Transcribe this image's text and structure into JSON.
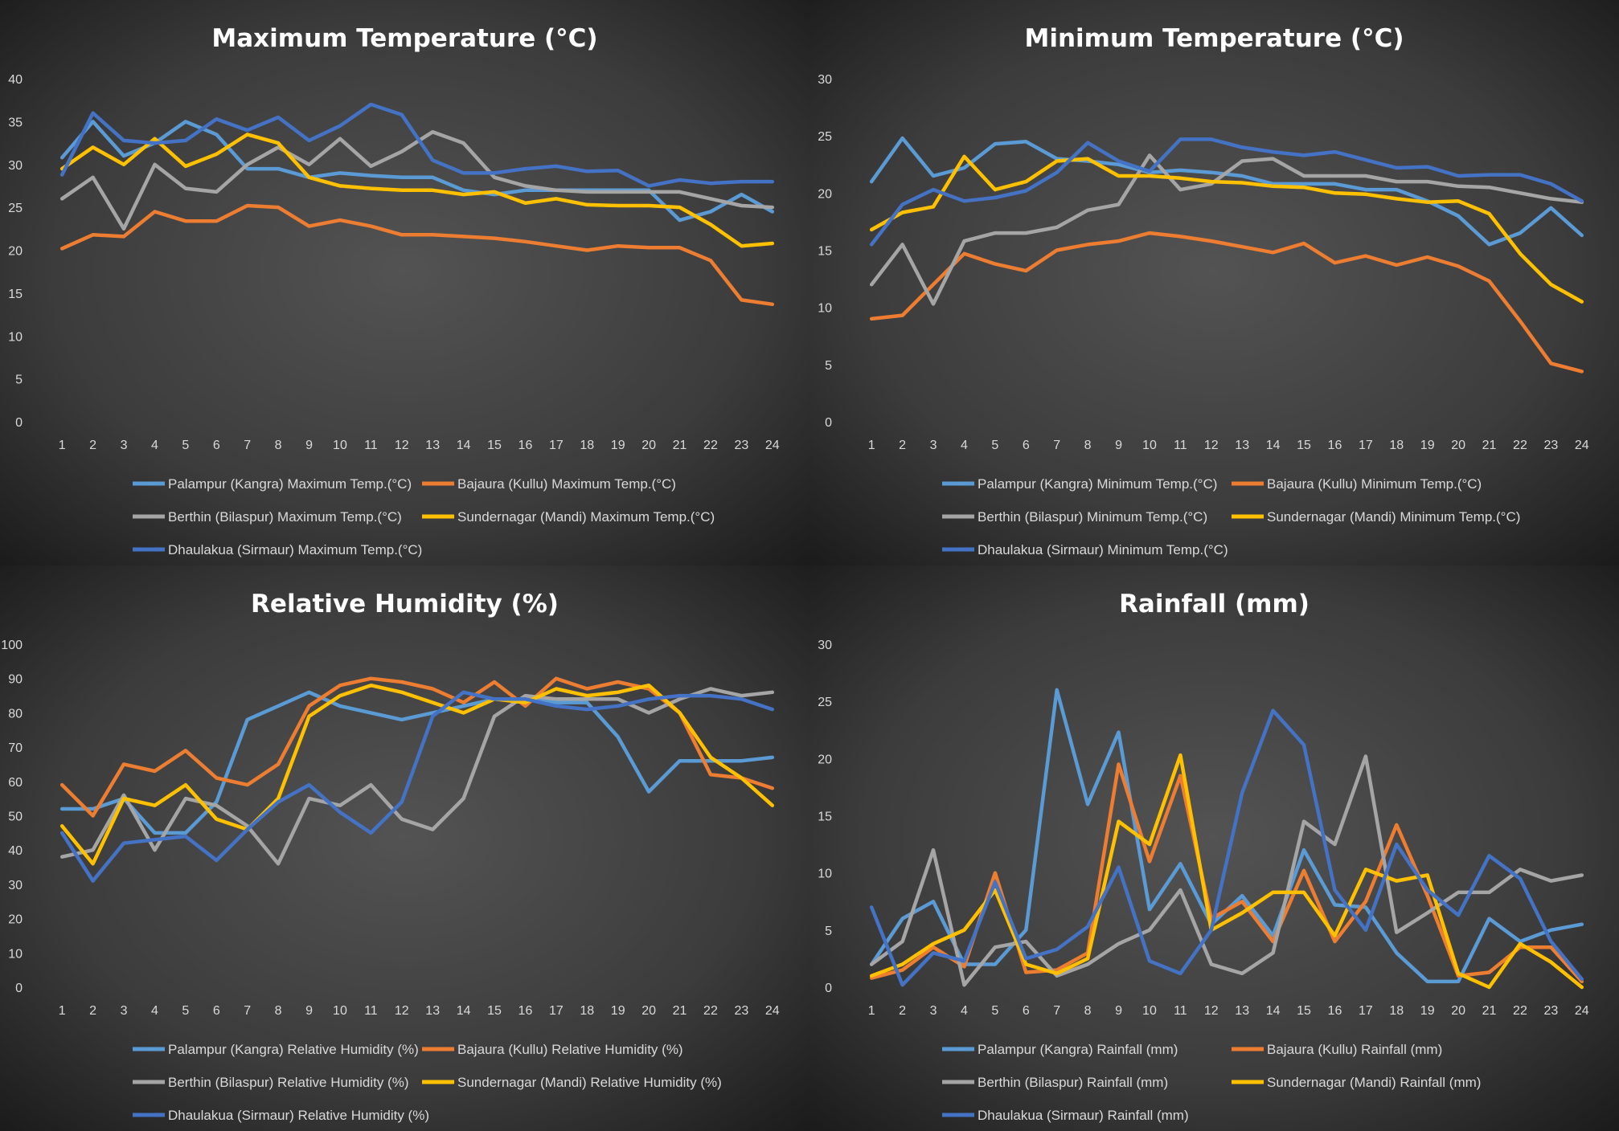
{
  "series_colors": [
    "#5b9bd5",
    "#ed7d31",
    "#a5a5a5",
    "#ffc000",
    "#4472c4"
  ],
  "chart_data": [
    {
      "type": "line",
      "title": "Maximum Temperature (°C)",
      "x": [
        1,
        2,
        3,
        4,
        5,
        6,
        7,
        8,
        9,
        10,
        11,
        12,
        13,
        14,
        15,
        16,
        17,
        18,
        19,
        20,
        21,
        22,
        23,
        24
      ],
      "ylim": [
        0,
        40
      ],
      "yticks": [
        0,
        5,
        10,
        15,
        20,
        25,
        30,
        35,
        40
      ],
      "grid": false,
      "legend_position": "bottom",
      "series": [
        {
          "name": "Palampur (Kangra) Maximum Temp.(°C)",
          "values": [
            30.8,
            35.0,
            31.0,
            32.5,
            35.0,
            33.5,
            29.5,
            29.5,
            28.5,
            29.0,
            28.7,
            28.5,
            28.5,
            27.0,
            26.5,
            27.0,
            27.0,
            27.0,
            27.0,
            27.0,
            23.5,
            24.5,
            26.5,
            24.5
          ]
        },
        {
          "name": "Bajaura (Kullu) Maximum Temp.(°C)",
          "values": [
            20.2,
            21.8,
            21.6,
            24.5,
            23.4,
            23.4,
            25.2,
            25.0,
            22.8,
            23.5,
            22.8,
            21.8,
            21.8,
            21.6,
            21.4,
            21.0,
            20.5,
            20.0,
            20.5,
            20.3,
            20.3,
            18.8,
            14.2,
            13.7
          ]
        },
        {
          "name": "Berthin (Bilaspur) Maximum Temp.(°C)",
          "values": [
            26.0,
            28.5,
            22.5,
            30.0,
            27.2,
            26.8,
            30.0,
            32.0,
            30.0,
            33.0,
            29.8,
            31.5,
            33.8,
            32.5,
            28.5,
            27.5,
            27.0,
            26.8,
            26.8,
            26.8,
            26.8,
            26.0,
            25.2,
            25.0
          ]
        },
        {
          "name": "Sundernagar (Mandi) Maximum Temp.(°C)",
          "values": [
            29.5,
            32.0,
            30.0,
            33.0,
            29.8,
            31.2,
            33.5,
            32.5,
            28.5,
            27.5,
            27.2,
            27.0,
            27.0,
            26.5,
            26.8,
            25.5,
            26.0,
            25.3,
            25.2,
            25.2,
            25.0,
            23.0,
            20.5,
            20.8
          ]
        },
        {
          "name": "Dhaulakua (Sirmaur) Maximum Temp.(°C)",
          "values": [
            28.8,
            36.0,
            32.8,
            32.5,
            32.8,
            35.3,
            34.0,
            35.5,
            32.8,
            34.5,
            37.0,
            35.8,
            30.5,
            29.0,
            29.0,
            29.5,
            29.8,
            29.2,
            29.3,
            27.5,
            28.2,
            27.8,
            28.0,
            28.0
          ]
        }
      ]
    },
    {
      "type": "line",
      "title": "Minimum Temperature (°C)",
      "x": [
        1,
        2,
        3,
        4,
        5,
        6,
        7,
        8,
        9,
        10,
        11,
        12,
        13,
        14,
        15,
        16,
        17,
        18,
        19,
        20,
        21,
        22,
        23,
        24
      ],
      "ylim": [
        0,
        30
      ],
      "yticks": [
        0,
        5,
        10,
        15,
        20,
        25,
        30
      ],
      "grid": false,
      "legend_position": "bottom",
      "series": [
        {
          "name": "Palampur (Kangra) Minimum Temp.(°C)",
          "values": [
            21.0,
            24.8,
            21.5,
            22.2,
            24.3,
            24.5,
            23.0,
            22.8,
            22.5,
            21.8,
            22.0,
            21.8,
            21.5,
            20.8,
            20.8,
            20.8,
            20.3,
            20.3,
            19.3,
            18.0,
            15.5,
            16.5,
            18.7,
            16.3
          ]
        },
        {
          "name": "Bajaura (Kullu) Minimum Temp.(°C)",
          "values": [
            9.0,
            9.3,
            12.0,
            14.7,
            13.8,
            13.2,
            15.0,
            15.5,
            15.8,
            16.5,
            16.2,
            15.8,
            15.3,
            14.8,
            15.6,
            13.9,
            14.5,
            13.7,
            14.4,
            13.6,
            12.3,
            8.8,
            5.1,
            4.4
          ]
        },
        {
          "name": "Berthin (Bilaspur) Minimum Temp.(°C)",
          "values": [
            12.0,
            15.5,
            10.3,
            15.8,
            16.5,
            16.5,
            17.0,
            18.5,
            19.0,
            23.3,
            20.3,
            20.8,
            22.8,
            23.0,
            21.5,
            21.5,
            21.5,
            21.0,
            21.0,
            20.6,
            20.5,
            20.0,
            19.5,
            19.2
          ]
        },
        {
          "name": "Sundernagar (Mandi) Minimum Temp.(°C)",
          "values": [
            16.8,
            18.3,
            18.8,
            23.2,
            20.3,
            21.0,
            22.8,
            23.0,
            21.5,
            21.5,
            21.3,
            21.0,
            20.9,
            20.6,
            20.5,
            20.0,
            19.9,
            19.5,
            19.2,
            19.3,
            18.2,
            14.7,
            12.0,
            10.5
          ]
        },
        {
          "name": "Dhaulakua (Sirmaur) Minimum Temp.(°C)",
          "values": [
            15.5,
            19.0,
            20.3,
            19.3,
            19.6,
            20.2,
            21.8,
            24.4,
            22.8,
            21.9,
            24.7,
            24.7,
            24.0,
            23.6,
            23.3,
            23.6,
            22.9,
            22.2,
            22.3,
            21.5,
            21.6,
            21.6,
            20.8,
            19.3
          ]
        }
      ]
    },
    {
      "type": "line",
      "title": "Relative Humidity (%)",
      "x": [
        1,
        2,
        3,
        4,
        5,
        6,
        7,
        8,
        9,
        10,
        11,
        12,
        13,
        14,
        15,
        16,
        17,
        18,
        19,
        20,
        21,
        22,
        23,
        24
      ],
      "ylim": [
        0,
        100
      ],
      "yticks": [
        0,
        10,
        20,
        30,
        40,
        50,
        60,
        70,
        80,
        90,
        100
      ],
      "grid": false,
      "legend_position": "bottom",
      "series": [
        {
          "name": "Palampur (Kangra) Relative Humidity (%)",
          "values": [
            52,
            52,
            55,
            45,
            45,
            54,
            78,
            82,
            86,
            82,
            80,
            78,
            80,
            82,
            84,
            84,
            83,
            83,
            73,
            57,
            66,
            66,
            66,
            67
          ]
        },
        {
          "name": "Bajaura (Kullu) Relative Humidity (%)",
          "values": [
            59,
            50,
            65,
            63,
            69,
            61,
            59,
            65,
            82,
            88,
            90,
            89,
            87,
            83,
            89,
            82,
            90,
            87,
            89,
            87,
            80,
            62,
            61,
            58
          ]
        },
        {
          "name": "Berthin (Bilaspur) Relative Humidity (%)",
          "values": [
            38,
            40,
            56,
            40,
            55,
            53,
            47,
            36,
            55,
            53,
            59,
            49,
            46,
            55,
            79,
            85,
            84,
            84,
            84,
            80,
            84,
            87,
            85,
            86
          ]
        },
        {
          "name": "Sundernagar (Mandi) Relative Humidity (%)",
          "values": [
            47,
            36,
            55,
            53,
            59,
            49,
            46,
            55,
            79,
            85,
            88,
            86,
            83,
            80,
            84,
            83,
            87,
            85,
            86,
            88,
            80,
            67,
            61,
            53
          ]
        },
        {
          "name": "Dhaulakua (Sirmaur) Relative Humidity (%)",
          "values": [
            45,
            31,
            42,
            43,
            44,
            37,
            46,
            54,
            59,
            51,
            45,
            54,
            79,
            86,
            84,
            84,
            82,
            81,
            82,
            84,
            85,
            85,
            84,
            81
          ]
        }
      ]
    },
    {
      "type": "line",
      "title": "Rainfall (mm)",
      "x": [
        1,
        2,
        3,
        4,
        5,
        6,
        7,
        8,
        9,
        10,
        11,
        12,
        13,
        14,
        15,
        16,
        17,
        18,
        19,
        20,
        21,
        22,
        23,
        24
      ],
      "ylim": [
        0,
        30
      ],
      "yticks": [
        0,
        5,
        10,
        15,
        20,
        25,
        30
      ],
      "grid": false,
      "legend_position": "bottom",
      "series": [
        {
          "name": "Palampur (Kangra) Rainfall (mm)",
          "values": [
            2.0,
            6.0,
            7.5,
            2.0,
            2.0,
            5.0,
            26.0,
            16.0,
            22.3,
            6.8,
            10.8,
            5.5,
            8.0,
            4.5,
            12.0,
            7.2,
            7.0,
            3.0,
            0.5,
            0.5,
            6.0,
            4.0,
            5.0,
            5.5
          ]
        },
        {
          "name": "Bajaura (Kullu) Rainfall (mm)",
          "values": [
            0.8,
            1.5,
            3.5,
            1.8,
            10.0,
            1.3,
            1.5,
            3.0,
            19.5,
            11.0,
            18.5,
            6.0,
            7.5,
            4.0,
            10.2,
            4.0,
            7.5,
            14.2,
            8.0,
            1.0,
            1.3,
            3.5,
            3.5,
            0.5
          ]
        },
        {
          "name": "Berthin (Bilaspur) Rainfall (mm)",
          "values": [
            2.0,
            4.0,
            12.0,
            0.2,
            3.5,
            4.0,
            1.0,
            2.0,
            3.8,
            5.0,
            8.5,
            2.0,
            1.2,
            3.0,
            14.5,
            12.5,
            20.2,
            4.8,
            6.5,
            8.3,
            8.3,
            10.3,
            9.3,
            9.8
          ]
        },
        {
          "name": "Sundernagar (Mandi) Rainfall (mm)",
          "values": [
            1.0,
            2.0,
            3.8,
            5.0,
            8.5,
            2.0,
            1.2,
            2.5,
            14.5,
            12.5,
            20.3,
            5.0,
            6.5,
            8.3,
            8.3,
            4.5,
            10.3,
            9.3,
            9.8,
            1.2,
            0.0,
            3.8,
            2.2,
            0.0
          ]
        },
        {
          "name": "Dhaulakua (Sirmaur) Rainfall (mm)",
          "values": [
            7.0,
            0.2,
            3.0,
            2.3,
            9.2,
            2.5,
            3.3,
            5.3,
            10.5,
            2.3,
            1.2,
            5.0,
            17.0,
            24.2,
            21.2,
            8.5,
            5.0,
            12.5,
            8.5,
            6.3,
            11.5,
            9.5,
            4.0,
            0.7
          ]
        }
      ]
    }
  ]
}
